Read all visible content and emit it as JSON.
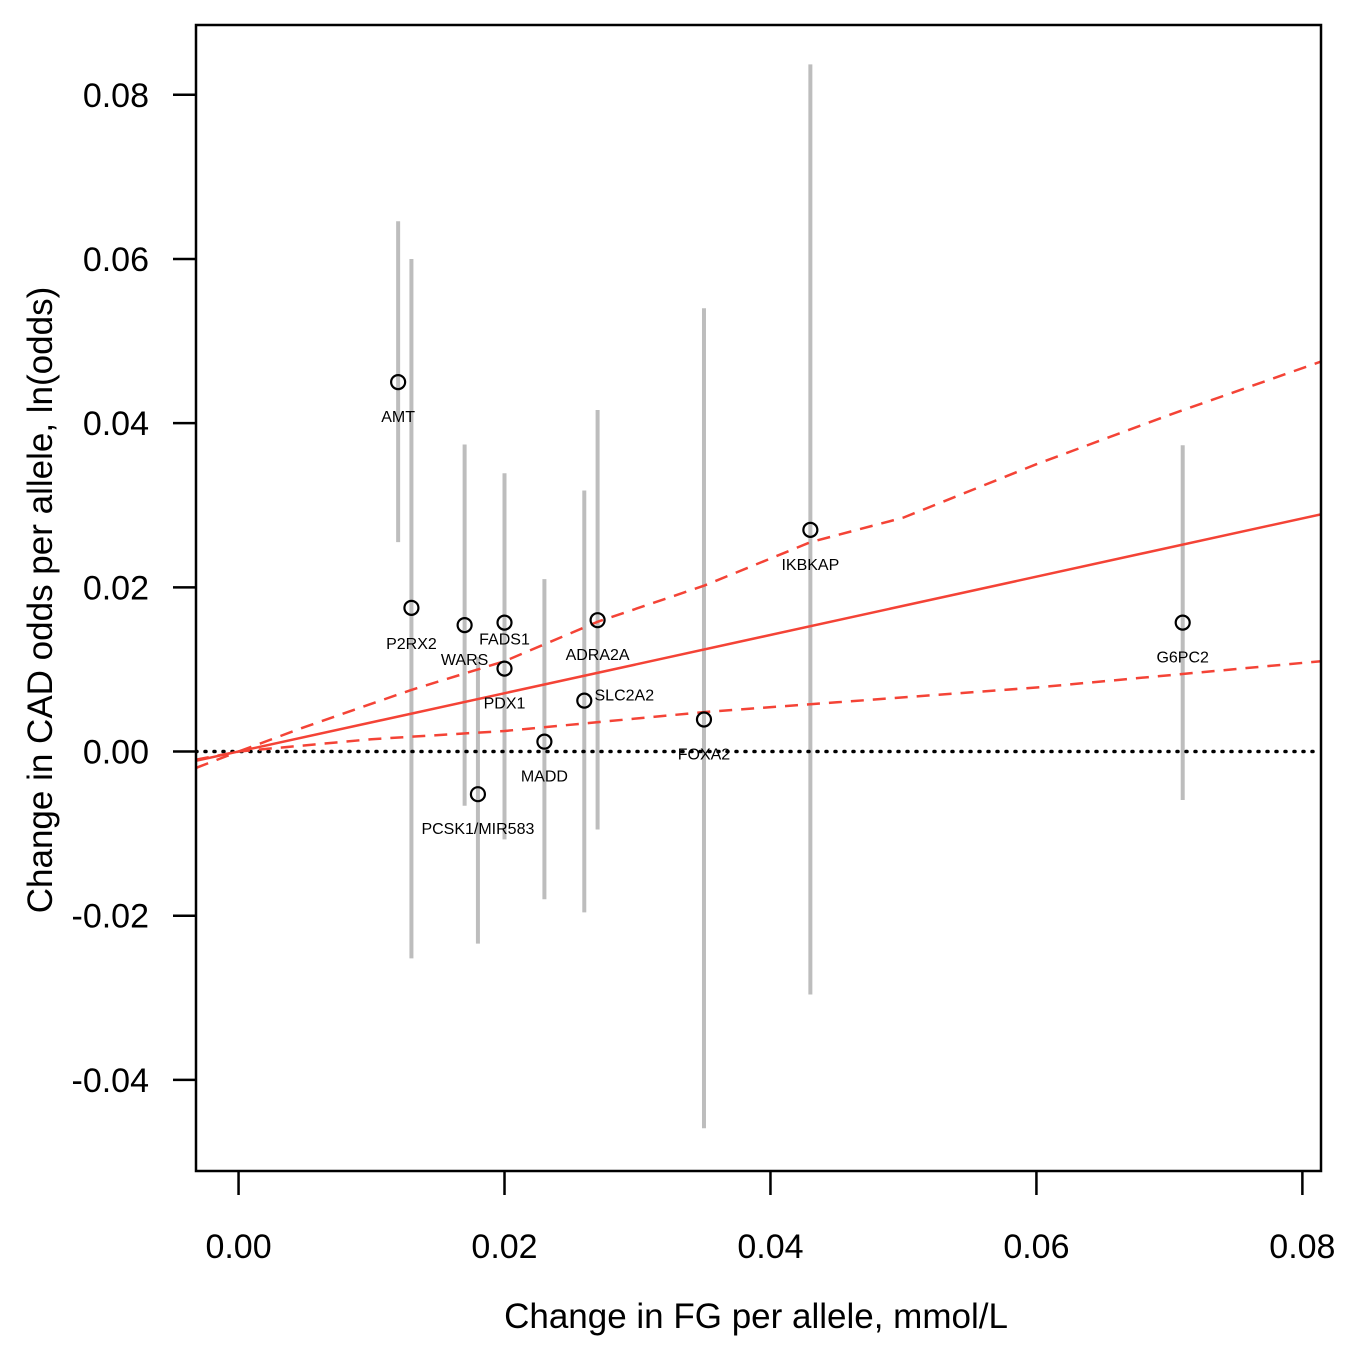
{
  "chart_data": {
    "type": "scatter",
    "title": "",
    "xlabel": "Change in FG per allele, mmol/L",
    "ylabel": "Change in CAD odds per allele, ln(odds)",
    "xlim": [
      -0.0032,
      0.0814
    ],
    "ylim": [
      -0.0511,
      0.0885
    ],
    "x_ticks": [
      0.0,
      0.02,
      0.04,
      0.06,
      0.08
    ],
    "x_tick_labels": [
      "0.00",
      "0.02",
      "0.04",
      "0.06",
      "0.08"
    ],
    "y_ticks": [
      -0.04,
      -0.02,
      0.0,
      0.02,
      0.04,
      0.06,
      0.08
    ],
    "y_tick_labels": [
      "-0.04",
      "-0.02",
      "0.00",
      "0.02",
      "0.04",
      "0.06",
      "0.08"
    ],
    "grid": false,
    "legend": "none",
    "points": [
      {
        "label": "AMT",
        "x": 0.012,
        "y": 0.045,
        "ci_low": 0.0255,
        "ci_high": 0.0646,
        "label_pos": "below"
      },
      {
        "label": "P2RX2",
        "x": 0.013,
        "y": 0.0175,
        "ci_low": -0.0252,
        "ci_high": 0.06,
        "label_pos": "below"
      },
      {
        "label": "WARS",
        "x": 0.017,
        "y": 0.0154,
        "ci_low": -0.0066,
        "ci_high": 0.0374,
        "label_pos": "below"
      },
      {
        "label": "FADS1",
        "x": 0.02,
        "y": 0.0157,
        "ci_low": -0.0107,
        "ci_high": 0.0339,
        "label_pos": "below"
      },
      {
        "label": "PDX1",
        "x": 0.02,
        "y": 0.0101,
        "ci_low": null,
        "ci_high": null,
        "label_pos": "below"
      },
      {
        "label": "PCSK1/MIR583",
        "x": 0.018,
        "y": -0.0052,
        "ci_low": -0.0234,
        "ci_high": 0.0115,
        "label_pos": "below"
      },
      {
        "label": "MADD",
        "x": 0.023,
        "y": 0.0012,
        "ci_low": -0.018,
        "ci_high": 0.021,
        "label_pos": "below"
      },
      {
        "label": "SLC2A2",
        "x": 0.026,
        "y": 0.0062,
        "ci_low": -0.0196,
        "ci_high": 0.0318,
        "label_pos": "below"
      },
      {
        "label": "ADRA2A",
        "x": 0.027,
        "y": 0.016,
        "ci_low": -0.0095,
        "ci_high": 0.0416,
        "label_pos": "below"
      },
      {
        "label": "FOXA2",
        "x": 0.035,
        "y": 0.0039,
        "ci_low": -0.0459,
        "ci_high": 0.054,
        "label_pos": "below"
      },
      {
        "label": "IKBKAP",
        "x": 0.043,
        "y": 0.027,
        "ci_low": -0.0296,
        "ci_high": 0.0837,
        "label_pos": "below"
      },
      {
        "label": "G6PC2",
        "x": 0.071,
        "y": 0.0157,
        "ci_low": -0.0059,
        "ci_high": 0.0373,
        "label_pos": "below"
      }
    ],
    "fit_line": {
      "intercept": 0.0,
      "slope": 0.355,
      "color": "#f44336",
      "style": "solid"
    },
    "ci_upper": {
      "x": [
        -0.0032,
        0.0,
        0.005,
        0.013,
        0.02,
        0.027,
        0.035,
        0.043,
        0.05,
        0.06,
        0.07,
        0.0814
      ],
      "y": [
        -0.001,
        0.0,
        0.003,
        0.0075,
        0.011,
        0.0158,
        0.0202,
        0.0255,
        0.0285,
        0.035,
        0.041,
        0.0475
      ],
      "color": "#f44336",
      "style": "dashed"
    },
    "ci_lower": {
      "x": [
        -0.0032,
        0.0,
        0.01,
        0.02,
        0.035,
        0.045,
        0.06,
        0.07,
        0.0814
      ],
      "y": [
        -0.002,
        0.0,
        0.0015,
        0.0025,
        0.0048,
        0.006,
        0.0078,
        0.0093,
        0.011
      ],
      "color": "#f44336",
      "style": "dashed"
    },
    "reference_line": {
      "y": 0.0,
      "color": "#000000",
      "style": "dotted"
    },
    "errorbar_color": "#bdbdbd",
    "marker": "open-circle"
  }
}
